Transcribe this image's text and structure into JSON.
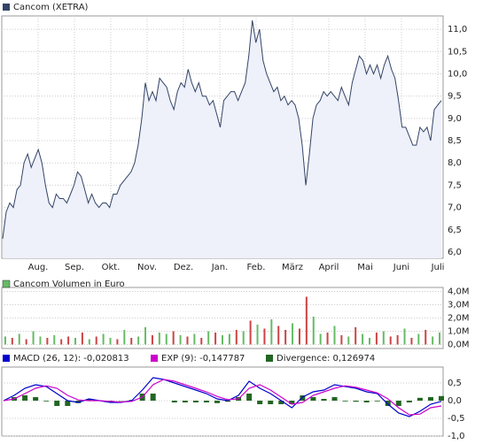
{
  "chart_data": [
    {
      "type": "line",
      "title": "Cancom (XETRA)",
      "color": "#334466",
      "fill": "#eef0fa",
      "x_labels": [
        "Aug.",
        "Sep.",
        "Okt.",
        "Nov.",
        "Dez.",
        "Jan.",
        "Feb.",
        "März",
        "April",
        "Mai",
        "Juni",
        "Juli"
      ],
      "values": [
        6.3,
        6.9,
        7.1,
        7.0,
        7.4,
        7.5,
        8.0,
        8.2,
        7.9,
        8.1,
        8.3,
        8.0,
        7.5,
        7.1,
        7.0,
        7.3,
        7.2,
        7.2,
        7.1,
        7.3,
        7.5,
        7.8,
        7.7,
        7.4,
        7.1,
        7.3,
        7.1,
        7.0,
        7.1,
        7.1,
        7.0,
        7.3,
        7.3,
        7.5,
        7.6,
        7.7,
        7.8,
        8.0,
        8.4,
        9.0,
        9.8,
        9.4,
        9.6,
        9.4,
        9.9,
        9.8,
        9.7,
        9.4,
        9.2,
        9.6,
        9.8,
        9.7,
        10.1,
        9.8,
        9.6,
        9.8,
        9.5,
        9.5,
        9.3,
        9.4,
        9.1,
        8.8,
        9.4,
        9.5,
        9.6,
        9.6,
        9.4,
        9.6,
        9.8,
        10.4,
        11.2,
        10.7,
        11.0,
        10.3,
        10.0,
        9.8,
        9.6,
        9.7,
        9.4,
        9.5,
        9.3,
        9.4,
        9.3,
        9.0,
        8.4,
        7.5,
        8.2,
        9.0,
        9.3,
        9.4,
        9.6,
        9.5,
        9.6,
        9.5,
        9.4,
        9.7,
        9.5,
        9.3,
        9.8,
        10.1,
        10.4,
        10.3,
        10.0,
        10.2,
        10.0,
        10.2,
        9.9,
        10.2,
        10.4,
        10.1,
        9.9,
        9.4,
        8.8,
        8.8,
        8.6,
        8.4,
        8.4,
        8.8,
        8.7,
        8.8,
        8.5,
        9.2,
        9.3,
        9.4
      ],
      "ylim": [
        5.86,
        11.3
      ],
      "yticks": [
        {
          "value": 6.0,
          "label": "6,0"
        },
        {
          "value": 6.5,
          "label": "6,5"
        },
        {
          "value": 7.0,
          "label": "7,0"
        },
        {
          "value": 7.5,
          "label": "7,5"
        },
        {
          "value": 8.0,
          "label": "8,0"
        },
        {
          "value": 8.5,
          "label": "8,5"
        },
        {
          "value": 9.0,
          "label": "9,0"
        },
        {
          "value": 9.5,
          "label": "9,5"
        },
        {
          "value": 10.0,
          "label": "10,0"
        },
        {
          "value": 10.5,
          "label": "10,5"
        },
        {
          "value": 11.0,
          "label": "11,0"
        }
      ],
      "grid": true
    },
    {
      "type": "bar",
      "title": "Cancom Volumen in Euro",
      "legend_color": "#66bb66",
      "values": [
        600000,
        500000,
        800000,
        400000,
        1000000,
        600000,
        500000,
        700000,
        400000,
        600000,
        500000,
        900000,
        400000,
        600000,
        800000,
        500000,
        400000,
        1100000,
        500000,
        600000,
        1300000,
        700000,
        900000,
        800000,
        1000000,
        700000,
        600000,
        800000,
        500000,
        1000000,
        900000,
        700000,
        800000,
        1100000,
        1000000,
        1800000,
        1500000,
        1200000,
        1900000,
        1400000,
        1100000,
        1600000,
        1200000,
        3600000,
        2100000,
        800000,
        900000,
        1400000,
        700000,
        600000,
        1300000,
        800000,
        500000,
        900000,
        1000000,
        600000,
        700000,
        1200000,
        500000,
        800000,
        1100000,
        600000,
        900000
      ],
      "colors": [
        "#66bb66",
        "#cc4444",
        "#66bb66",
        "#cc4444",
        "#66bb66",
        "#66bb66",
        "#cc4444",
        "#66bb66",
        "#cc4444",
        "#cc4444",
        "#66bb66",
        "#cc4444",
        "#66bb66",
        "#cc4444",
        "#66bb66",
        "#66bb66",
        "#cc4444",
        "#66bb66",
        "#cc4444",
        "#66bb66",
        "#66bb66",
        "#cc4444",
        "#66bb66",
        "#66bb66",
        "#cc4444",
        "#66bb66",
        "#cc4444",
        "#66bb66",
        "#cc4444",
        "#66bb66",
        "#cc4444",
        "#66bb66",
        "#66bb66",
        "#cc4444",
        "#66bb66",
        "#cc4444",
        "#66bb66",
        "#cc4444",
        "#66bb66",
        "#cc4444",
        "#cc4444",
        "#66bb66",
        "#cc4444",
        "#cc4444",
        "#66bb66",
        "#66bb66",
        "#cc4444",
        "#66bb66",
        "#cc4444",
        "#66bb66",
        "#cc4444",
        "#66bb66",
        "#66bb66",
        "#cc4444",
        "#66bb66",
        "#cc4444",
        "#cc4444",
        "#66bb66",
        "#cc4444",
        "#66bb66",
        "#cc4444",
        "#66bb66",
        "#66bb66"
      ],
      "ylim": [
        -300000,
        4300000
      ],
      "yticks": [
        {
          "value": 0,
          "label": "0,0M"
        },
        {
          "value": 1000000,
          "label": "1,0M"
        },
        {
          "value": 2000000,
          "label": "2,0M"
        },
        {
          "value": 3000000,
          "label": "3,0M"
        },
        {
          "value": 4000000,
          "label": "4,0M"
        }
      ],
      "grid": true
    },
    {
      "type": "line",
      "series": [
        {
          "name": "MACD (26, 12): -0,020813",
          "kind": "line",
          "color": "#0000cc",
          "values": [
            0.0,
            0.15,
            0.35,
            0.45,
            0.4,
            0.2,
            0.0,
            -0.05,
            0.05,
            0.0,
            -0.05,
            -0.05,
            0.0,
            0.3,
            0.65,
            0.6,
            0.5,
            0.4,
            0.3,
            0.2,
            0.05,
            0.0,
            0.15,
            0.55,
            0.35,
            0.2,
            0.0,
            -0.2,
            0.1,
            0.25,
            0.3,
            0.45,
            0.4,
            0.35,
            0.25,
            0.2,
            -0.1,
            -0.35,
            -0.45,
            -0.3,
            -0.1,
            -0.02
          ]
        },
        {
          "name": "EXP (9): -0,147787",
          "kind": "line",
          "color": "#cc00cc",
          "values": [
            0.0,
            0.05,
            0.2,
            0.35,
            0.42,
            0.35,
            0.15,
            0.02,
            0.0,
            0.0,
            -0.02,
            -0.04,
            -0.02,
            0.1,
            0.45,
            0.6,
            0.55,
            0.45,
            0.35,
            0.25,
            0.12,
            0.03,
            0.05,
            0.35,
            0.45,
            0.3,
            0.1,
            -0.1,
            -0.05,
            0.15,
            0.25,
            0.35,
            0.42,
            0.38,
            0.3,
            0.22,
            0.05,
            -0.2,
            -0.4,
            -0.38,
            -0.2,
            -0.15
          ]
        },
        {
          "name": "Divergence: 0,126974",
          "kind": "bar",
          "color": "#226622",
          "values": [
            0.0,
            0.1,
            0.15,
            0.1,
            -0.02,
            -0.15,
            -0.15,
            -0.07,
            0.05,
            0.0,
            -0.03,
            -0.01,
            0.02,
            0.2,
            0.2,
            0.0,
            -0.05,
            -0.05,
            -0.05,
            -0.05,
            -0.07,
            -0.03,
            0.1,
            0.2,
            -0.1,
            -0.1,
            -0.1,
            -0.1,
            0.15,
            0.1,
            0.05,
            0.1,
            -0.02,
            -0.03,
            -0.05,
            -0.02,
            -0.15,
            -0.15,
            -0.05,
            0.08,
            0.1,
            0.13
          ]
        }
      ],
      "ylim": [
        -1.0,
        0.95
      ],
      "yticks": [
        {
          "value": -1.0,
          "label": "-1,0"
        },
        {
          "value": -0.5,
          "label": "-0,5"
        },
        {
          "value": 0.0,
          "label": "0,0"
        },
        {
          "value": 0.5,
          "label": "0,5"
        }
      ],
      "grid": true
    }
  ]
}
